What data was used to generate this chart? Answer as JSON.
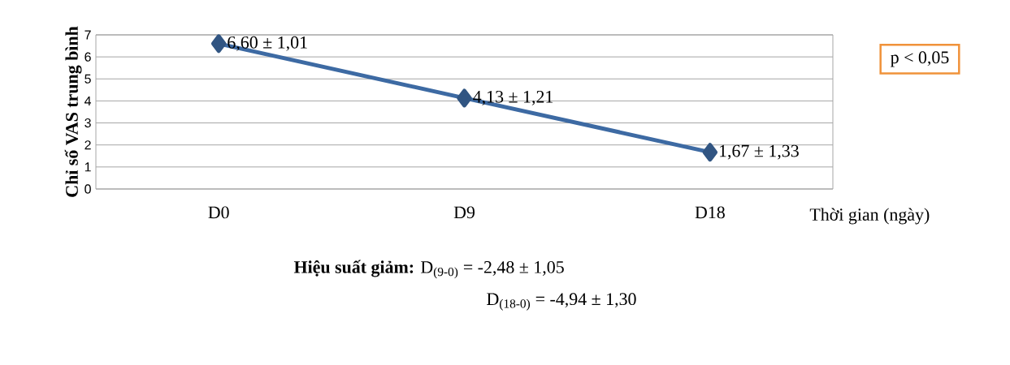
{
  "chart_data": {
    "type": "line",
    "ylabel": "Chỉ số VAS trung bình",
    "xlabel": "Thời gian (ngày)",
    "categories": [
      "D0",
      "D9",
      "D18"
    ],
    "values": [
      6.6,
      4.13,
      1.67
    ],
    "value_labels": [
      "6,60 ± 1,01",
      "4,13 ± 1,21",
      "1,67 ± 1,33"
    ],
    "color": "#3d6aa3",
    "marker": "diamond",
    "line_style": "solid",
    "grid": "y",
    "ylim": [
      0,
      7
    ],
    "yticks": [
      0,
      1,
      2,
      3,
      4,
      5,
      6,
      7
    ],
    "annotations": [
      "p < 0,05",
      "**Hiệu suất giảm:** D$_{(9-0)}$ = -2,48 ±  1,05",
      "D$_{(18-0)}$ = -4,94 ± 1,30"
    ]
  }
}
